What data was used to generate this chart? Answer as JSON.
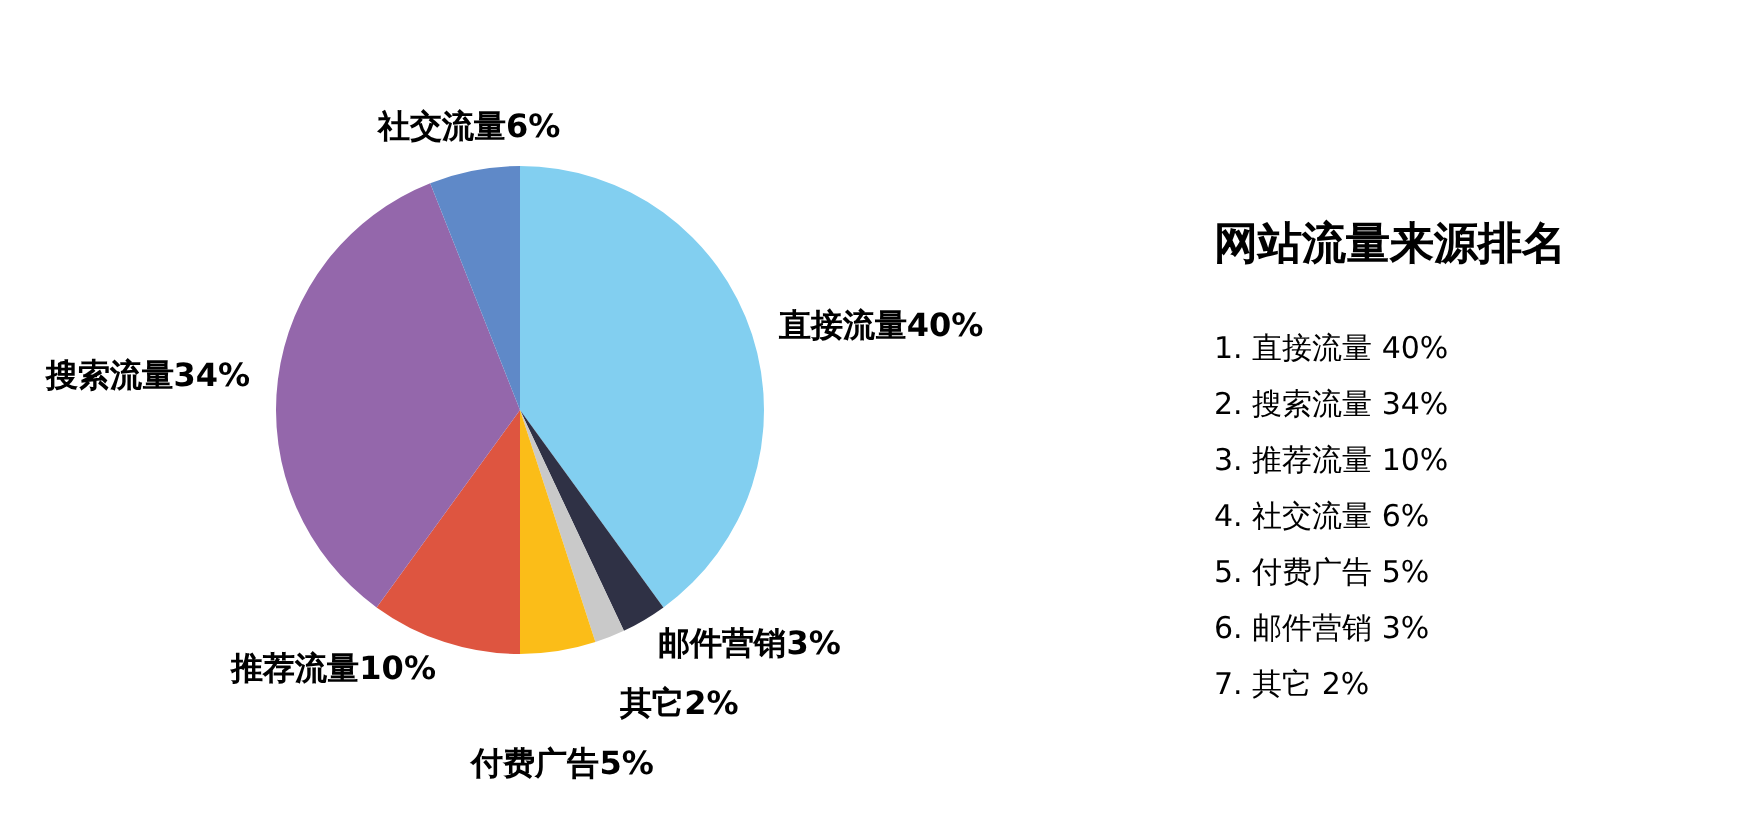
{
  "chart_data": {
    "type": "pie",
    "title": "网站流量来源排名",
    "categories": [
      "直接流量",
      "邮件营销",
      "其它",
      "付费广告",
      "推荐流量",
      "搜索流量",
      "社交流量"
    ],
    "values": [
      40,
      3,
      2,
      5,
      10,
      34,
      6
    ],
    "value_labels": [
      "40%",
      "3%",
      "2%",
      "5%",
      "10%",
      "34%",
      "6%"
    ],
    "colors": [
      "#82cff0",
      "#2f3145",
      "#c9c9c9",
      "#fbbd18",
      "#de5540",
      "#9467ab",
      "#5f89c8"
    ],
    "annotations": [
      "1. 直接流量 40%",
      "2. 搜索流量 34%",
      "3. 推荐流量 10%",
      "4. 社交流量 6%",
      "5. 付费广告 5%",
      "6. 邮件营销 3%",
      "7. 其它 2%"
    ]
  }
}
